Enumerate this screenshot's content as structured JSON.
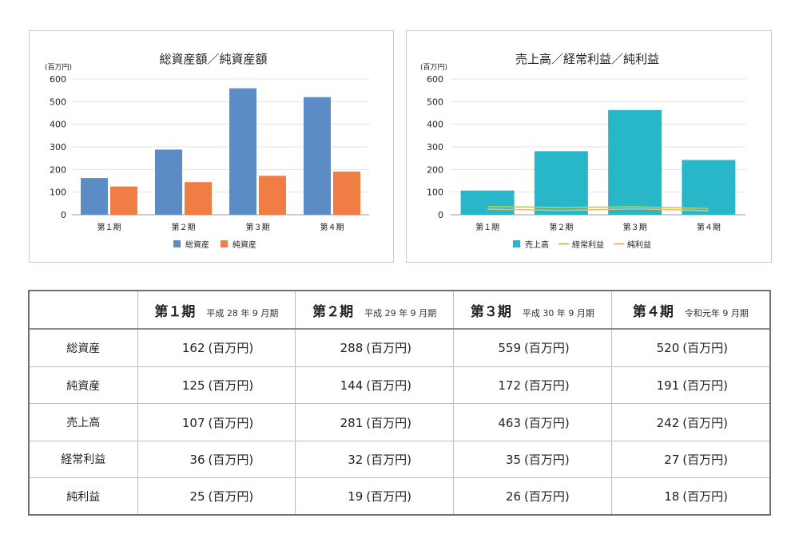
{
  "chart_data": [
    {
      "type": "bar",
      "title": "総資産額／純資産額",
      "ylabel": "(百万円)",
      "categories": [
        "第１期",
        "第２期",
        "第３期",
        "第４期"
      ],
      "ylim": [
        0,
        600
      ],
      "yticks": [
        "0",
        "100",
        "200",
        "300",
        "400",
        "500",
        "600"
      ],
      "series": [
        {
          "name": "総資産",
          "values": [
            162,
            288,
            559,
            520
          ],
          "color": "#5b8cc5"
        },
        {
          "name": "純資産",
          "values": [
            125,
            144,
            172,
            191
          ],
          "color": "#ef7d44"
        }
      ],
      "legend": "bottom",
      "grid": true
    },
    {
      "type": "bar",
      "title": "売上高／経常利益／純利益",
      "ylabel": "(百万円)",
      "categories": [
        "第１期",
        "第２期",
        "第３期",
        "第４期"
      ],
      "ylim": [
        0,
        600
      ],
      "yticks": [
        "0",
        "100",
        "200",
        "300",
        "400",
        "500",
        "600"
      ],
      "series": [
        {
          "name": "売上高",
          "type": "bar",
          "values": [
            107,
            281,
            463,
            242
          ],
          "color": "#27b7c8"
        },
        {
          "name": "経常利益",
          "type": "line",
          "values": [
            36,
            32,
            35,
            27
          ],
          "color": "#b6cf55"
        },
        {
          "name": "純利益",
          "type": "line",
          "values": [
            25,
            19,
            26,
            18
          ],
          "color": "#f3b96a"
        }
      ],
      "legend": "bottom",
      "grid": true
    }
  ],
  "table": {
    "headers": [
      {
        "period": "第１期",
        "date": "平成 28 年 9 月期"
      },
      {
        "period": "第２期",
        "date": "平成 29 年 9 月期"
      },
      {
        "period": "第３期",
        "date": "平成 30 年 9 月期"
      },
      {
        "period": "第４期",
        "date": "令和元年 9 月期"
      }
    ],
    "unit": "(百万円)",
    "rows": [
      {
        "label": "総資産",
        "values": [
          "162",
          "288",
          "559",
          "520"
        ]
      },
      {
        "label": "純資産",
        "values": [
          "125",
          "144",
          "172",
          "191"
        ]
      },
      {
        "label": "売上高",
        "values": [
          "107",
          "281",
          "463",
          "242"
        ]
      },
      {
        "label": "経常利益",
        "values": [
          "36",
          "32",
          "35",
          "27"
        ]
      },
      {
        "label": "純利益",
        "values": [
          "25",
          "19",
          "26",
          "18"
        ]
      }
    ]
  }
}
